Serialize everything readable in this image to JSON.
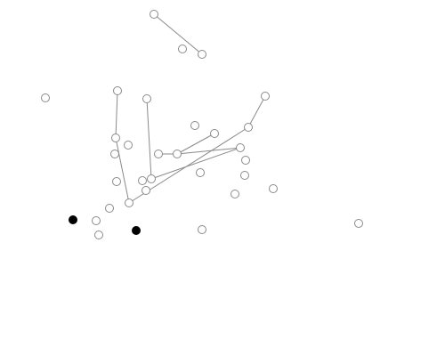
{
  "colors": {
    "background": "#ffffff",
    "node_stroke": "#8a8a8a",
    "node_fill": "#ffffff",
    "selected_fill": "#000000",
    "edge": "#8a8a8a"
  },
  "board": {
    "nodes": [
      {
        "id": "n1",
        "selected": false
      },
      {
        "id": "n2",
        "selected": false
      },
      {
        "id": "n3",
        "selected": false
      },
      {
        "id": "n4",
        "selected": false
      },
      {
        "id": "n5",
        "selected": false
      },
      {
        "id": "n6",
        "selected": false
      },
      {
        "id": "n7",
        "selected": false
      },
      {
        "id": "n8",
        "selected": false
      },
      {
        "id": "n9",
        "selected": false
      },
      {
        "id": "n10",
        "selected": false
      },
      {
        "id": "n11",
        "selected": false
      },
      {
        "id": "n12",
        "selected": false
      },
      {
        "id": "n13",
        "selected": false
      },
      {
        "id": "n14",
        "selected": false
      },
      {
        "id": "n15",
        "selected": false
      },
      {
        "id": "n16",
        "selected": false
      },
      {
        "id": "n17",
        "selected": false
      },
      {
        "id": "n18",
        "selected": false
      },
      {
        "id": "n19",
        "selected": false
      },
      {
        "id": "n20",
        "selected": false
      },
      {
        "id": "n21",
        "selected": false
      },
      {
        "id": "n22",
        "selected": false
      },
      {
        "id": "n23",
        "selected": false
      },
      {
        "id": "n24",
        "selected": false
      },
      {
        "id": "n25",
        "selected": false
      },
      {
        "id": "n26",
        "selected": true
      },
      {
        "id": "n27",
        "selected": false
      },
      {
        "id": "n28",
        "selected": false
      },
      {
        "id": "n29",
        "selected": true
      },
      {
        "id": "n30",
        "selected": false
      },
      {
        "id": "n31",
        "selected": false
      }
    ],
    "edges": [
      [
        "n1",
        "n3"
      ],
      [
        "n5",
        "n9"
      ],
      [
        "n9",
        "n20"
      ],
      [
        "n6",
        "n19"
      ],
      [
        "n20",
        "n19"
      ],
      [
        "n14",
        "n15"
      ],
      [
        "n15",
        "n11"
      ],
      [
        "n15",
        "n17"
      ],
      [
        "n17",
        "n12"
      ],
      [
        "n12",
        "n7"
      ]
    ]
  }
}
